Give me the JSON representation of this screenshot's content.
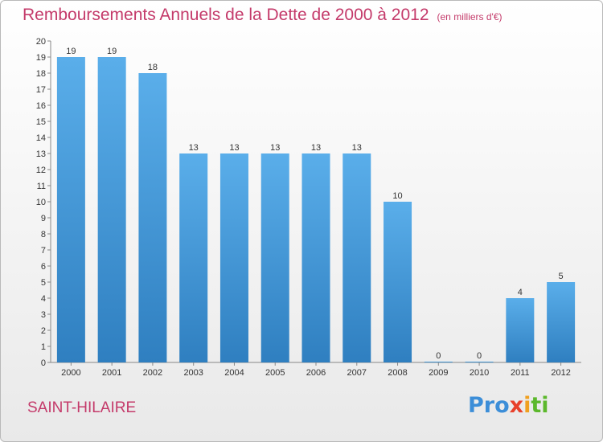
{
  "chart_data": {
    "type": "bar",
    "title": "Remboursements Annuels de la Dette de 2000 à 2012",
    "subtitle": "(en milliers d'€)",
    "categories": [
      "2000",
      "2001",
      "2002",
      "2003",
      "2004",
      "2005",
      "2006",
      "2007",
      "2008",
      "2009",
      "2010",
      "2011",
      "2012"
    ],
    "values": [
      19,
      19,
      18,
      13,
      13,
      13,
      13,
      13,
      10,
      0,
      0,
      4,
      5
    ],
    "y_ticks": [
      0,
      1,
      2,
      3,
      4,
      5,
      6,
      7,
      8,
      9,
      10,
      11,
      12,
      13,
      14,
      15,
      16,
      17,
      18,
      19,
      20
    ],
    "ylim": [
      0,
      20
    ],
    "xlabel": "",
    "ylabel": "",
    "grid": false,
    "bar_color": "#4a9bdc"
  },
  "footer": {
    "city": "SAINT-HILAIRE",
    "logo": [
      "Pro",
      "x",
      "i",
      "ti"
    ]
  }
}
